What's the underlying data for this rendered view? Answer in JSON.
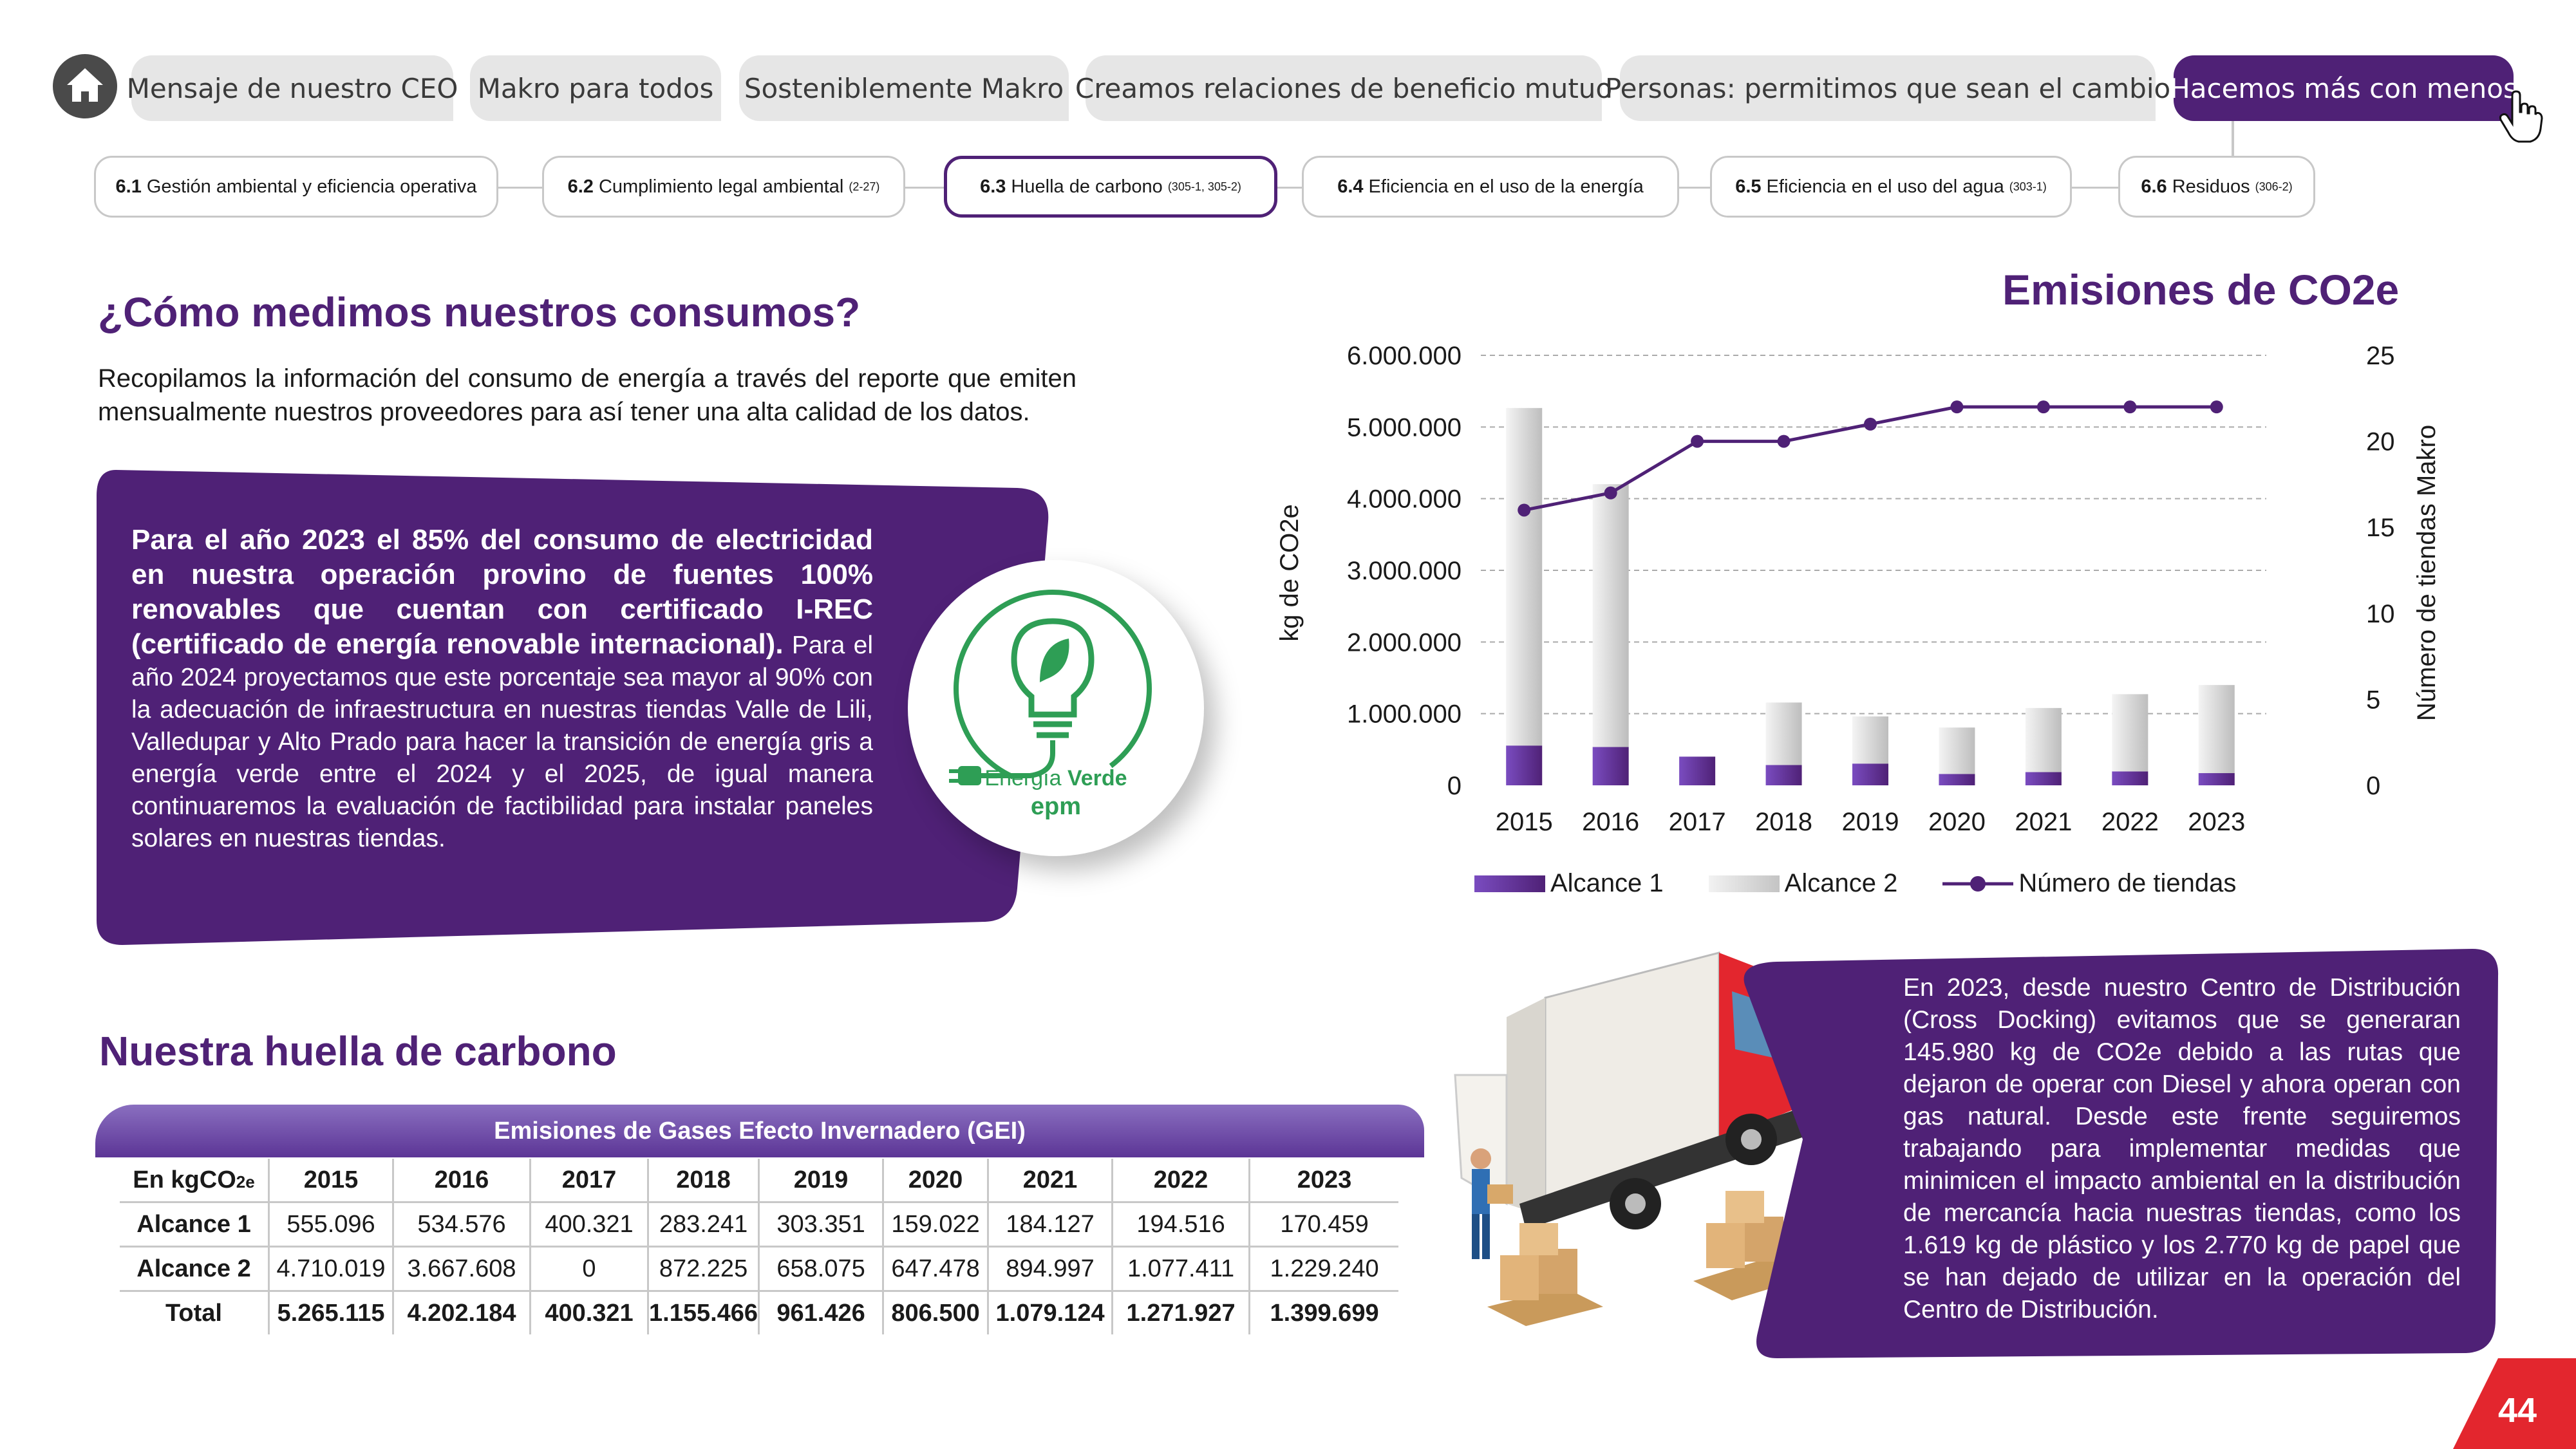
{
  "nav": {
    "tabs": [
      {
        "label": "Mensaje de nuestro CEO"
      },
      {
        "label": "Makro para todos"
      },
      {
        "label": "Sosteniblemente Makro"
      },
      {
        "label": "Creamos relaciones de beneficio mutuo"
      },
      {
        "label": "Personas: permitimos que sean el cambio"
      },
      {
        "label": "Hacemos más con menos",
        "active": true
      }
    ],
    "subtabs": [
      {
        "num": "6.1",
        "label": "Gestión ambiental y eficiencia operativa",
        "ref": ""
      },
      {
        "num": "6.2",
        "label": "Cumplimiento legal ambiental",
        "ref": "(2-27)"
      },
      {
        "num": "6.3",
        "label": "Huella de carbono",
        "ref": "(305-1, 305-2)",
        "active": true
      },
      {
        "num": "6.4",
        "label": "Eficiencia en el uso de la energía",
        "ref": ""
      },
      {
        "num": "6.5",
        "label": "Eficiencia en el uso del agua",
        "ref": "(303-1)"
      },
      {
        "num": "6.6",
        "label": "Residuos",
        "ref": "(306-2)"
      }
    ]
  },
  "section1": {
    "title": "¿Cómo medimos nuestros consumos?",
    "intro": "Recopilamos la información del consumo de energía a través del reporte que emiten mensualmente nuestros proveedores para así tener una alta calidad de los datos.",
    "highlight_bold": "Para el año 2023 el 85% del consumo de electricidad en nuestra operación provino de fuentes 100% renovables que cuentan con certificado I-REC (certificado de energía renovable internacional).",
    "highlight_rest": " Para el año 2024 proyectamos que este porcentaje sea mayor al 90% con la adecuación de infraestructura en nuestras tiendas Valle de Lili, Valledupar y Alto Prado para hacer la transición de energía gris a energía verde entre el 2024 y el 2025, de igual manera continuaremos la evaluación de factibilidad para instalar paneles solares en nuestras tiendas.",
    "badge_line1": "Energía",
    "badge_line1b": "Verde",
    "badge_line2": "epm"
  },
  "chart_data": {
    "type": "bar",
    "title": "Emisiones de CO2e",
    "ylabel": "kg de CO2e",
    "y2label": "Número de tiendas Makro",
    "categories": [
      "2015",
      "2016",
      "2017",
      "2018",
      "2019",
      "2020",
      "2021",
      "2022",
      "2023"
    ],
    "ylim": [
      0,
      6000000
    ],
    "yticks": [
      "0",
      "1.000.000",
      "2.000.000",
      "3.000.000",
      "4.000.000",
      "5.000.000",
      "6.000.000"
    ],
    "y2lim": [
      0,
      25
    ],
    "y2ticks": [
      "0",
      "5",
      "10",
      "15",
      "20",
      "25"
    ],
    "stacked": true,
    "grid": true,
    "series": [
      {
        "name": "Alcance 1",
        "kind": "bar",
        "color": "#5a2d91",
        "values": [
          555096,
          534576,
          400321,
          283241,
          303351,
          159022,
          184127,
          194516,
          170459
        ]
      },
      {
        "name": "Alcance 2",
        "kind": "bar",
        "color": "#d4d4d4",
        "values": [
          4710019,
          3667608,
          0,
          872225,
          658075,
          647478,
          894997,
          1077411,
          1229240
        ]
      },
      {
        "name": "Número de tiendas",
        "kind": "line",
        "axis": "right",
        "color": "#4f2176",
        "values": [
          16,
          17,
          20,
          20,
          21,
          22,
          22,
          22,
          22
        ]
      }
    ],
    "legend_position": "bottom"
  },
  "section2": {
    "title": "Nuestra huella de carbono",
    "table_title": "Emisiones de Gases Efecto Invernadero (GEI)",
    "unit_prefix": "En kgCO",
    "unit_suffix": "2e",
    "years": [
      "2015",
      "2016",
      "2017",
      "2018",
      "2019",
      "2020",
      "2021",
      "2022",
      "2023"
    ],
    "rows": [
      {
        "label": "Alcance 1",
        "values": [
          "555.096",
          "534.576",
          "400.321",
          "283.241",
          "303.351",
          "159.022",
          "184.127",
          "194.516",
          "170.459"
        ]
      },
      {
        "label": "Alcance 2",
        "values": [
          "4.710.019",
          "3.667.608",
          "0",
          "872.225",
          "658.075",
          "647.478",
          "894.997",
          "1.077.411",
          "1.229.240"
        ]
      },
      {
        "label": "Total",
        "values": [
          "5.265.115",
          "4.202.184",
          "400.321",
          "1.155.466",
          "961.426",
          "806.500",
          "1.079.124",
          "1.271.927",
          "1.399.699"
        ]
      }
    ]
  },
  "crossdock": {
    "text": "En 2023, desde nuestro Centro de Distribución (Cross Docking) evitamos que se generaran 145.980 kg de CO2e debido a las rutas que dejaron de operar con Diesel y ahora operan con gas natural. Desde este frente seguiremos trabajando para implementar medidas que minimicen el impacto ambiental en la distribución de mercancía hacia nuestras tiendas, como los 1.619 kg de plástico y los 2.770 kg de papel que se han dejado de utilizar en la operación del Centro de Distribución."
  },
  "page": {
    "number": "44"
  },
  "colors": {
    "purple": "#4f2176",
    "accent_red": "#e3262e",
    "grey_tab": "#e6e6e6"
  }
}
